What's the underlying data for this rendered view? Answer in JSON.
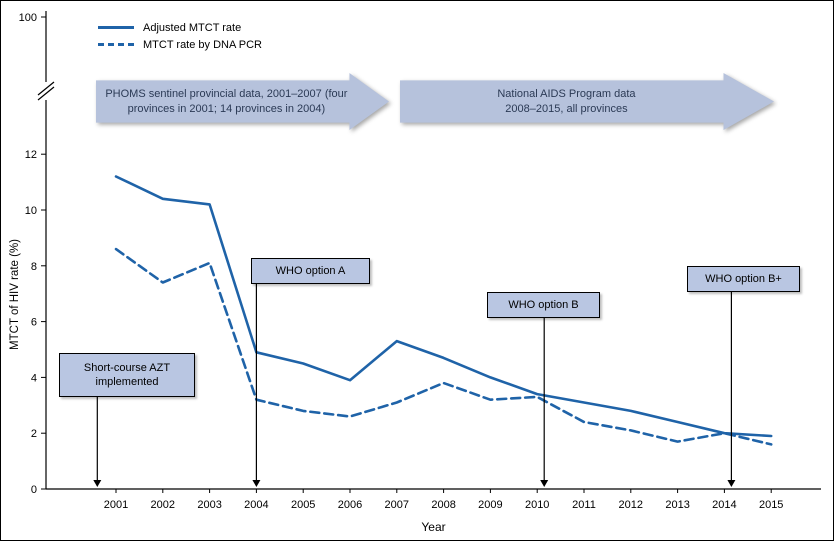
{
  "colors": {
    "line": "#1f63a8",
    "banner_fill": "#b6c2dc",
    "banner_text": "#2b3a55",
    "callout_fill": "#b9c6e2"
  },
  "chart_data": {
    "type": "line",
    "title": "",
    "xlabel": "Year",
    "ylabel": "MTCT of HIV rate (%)",
    "grid": false,
    "legend_position": "top-left",
    "x": [
      2001,
      2002,
      2003,
      2004,
      2005,
      2006,
      2007,
      2008,
      2009,
      2010,
      2011,
      2012,
      2013,
      2014,
      2015
    ],
    "yticks": [
      0,
      2,
      4,
      6,
      8,
      10,
      12
    ],
    "y_break_top_label": "100",
    "y_axis_break": true,
    "ylim": [
      0,
      12.5
    ],
    "series": [
      {
        "name": "Adjusted MTCT rate",
        "line_style": "solid",
        "values": [
          11.2,
          10.4,
          10.2,
          4.9,
          4.5,
          3.9,
          5.3,
          4.7,
          4.0,
          3.4,
          3.1,
          2.8,
          2.4,
          2.0,
          1.9
        ]
      },
      {
        "name": "MTCT rate by DNA PCR",
        "line_style": "dashed",
        "values": [
          8.6,
          7.4,
          8.1,
          3.2,
          2.8,
          2.6,
          3.1,
          3.8,
          3.2,
          3.3,
          2.4,
          2.1,
          1.7,
          2.0,
          1.6
        ]
      }
    ],
    "banners": [
      {
        "text": "PHOMS sentinel provincial data, 2001–2007 (four\nprovinces in 2001; 14 provinces in 2004)"
      },
      {
        "text": "National AIDS Program data\n2008–2015, all provinces"
      }
    ],
    "annotations": [
      {
        "label": "Short-course AZT\nimplemented",
        "arrow_year": 2000.6
      },
      {
        "label": "WHO option A",
        "arrow_year": 2004
      },
      {
        "label": "WHO option B",
        "arrow_year": 2010.15
      },
      {
        "label": "WHO option B+",
        "arrow_year": 2014.15
      }
    ]
  }
}
